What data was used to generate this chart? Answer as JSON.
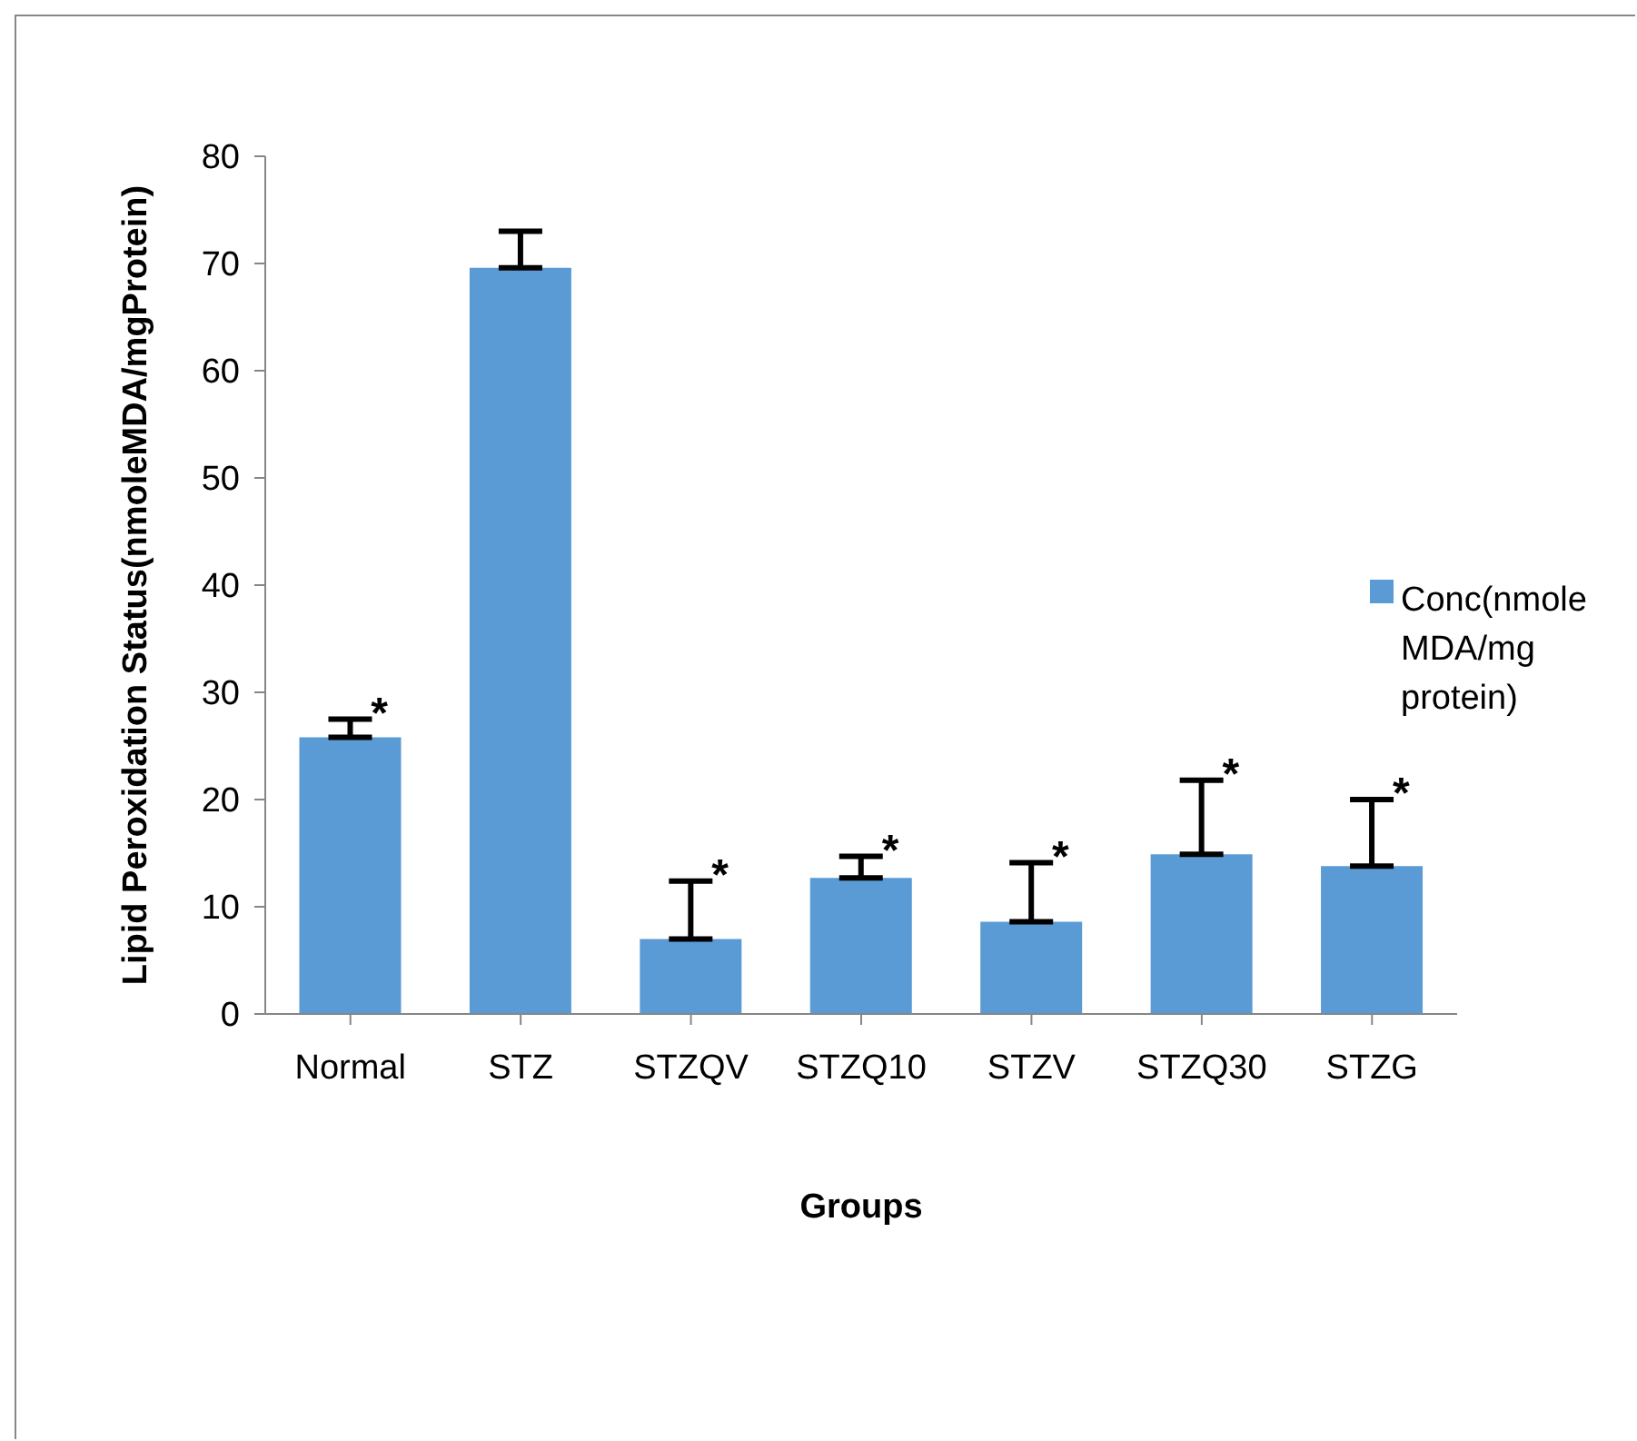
{
  "chart_data": {
    "type": "bar",
    "xlabel": "Groups",
    "ylabel": "Lipid Peroxidation Status(nmoleMDA/mgProtein)",
    "categories": [
      "Normal",
      "STZ",
      "STZQV",
      "STZQ10",
      "STZV",
      "STZQ30",
      "STZG"
    ],
    "series": [
      {
        "name": "Conc(nmole MDA/mg protein)",
        "color": "#5b9bd5",
        "values": [
          25.8,
          69.6,
          7.0,
          12.7,
          8.6,
          14.9,
          13.8
        ],
        "errors": [
          [
            25.8,
            27.5
          ],
          [
            69.6,
            73.0
          ],
          [
            7.0,
            12.4
          ],
          [
            12.7,
            14.7
          ],
          [
            8.6,
            14.1
          ],
          [
            14.9,
            21.8
          ],
          [
            13.8,
            20.0
          ]
        ]
      }
    ],
    "ylim": [
      0,
      80
    ],
    "yticks": [
      0,
      10,
      20,
      30,
      40,
      50,
      60,
      70,
      80
    ],
    "grid": false,
    "legend": "right",
    "annotations": [
      {
        "text": "*",
        "x": "Normal",
        "y": 27.5
      },
      {
        "text": "*",
        "x": "STZQV",
        "y": 12.4
      },
      {
        "text": "*",
        "x": "STZQ10",
        "y": 14.7
      },
      {
        "text": "*",
        "x": "STZV",
        "y": 14.1
      },
      {
        "text": "*",
        "x": "STZQ30",
        "y": 21.8
      },
      {
        "text": "*",
        "x": "STZG",
        "y": 20.0
      }
    ]
  }
}
